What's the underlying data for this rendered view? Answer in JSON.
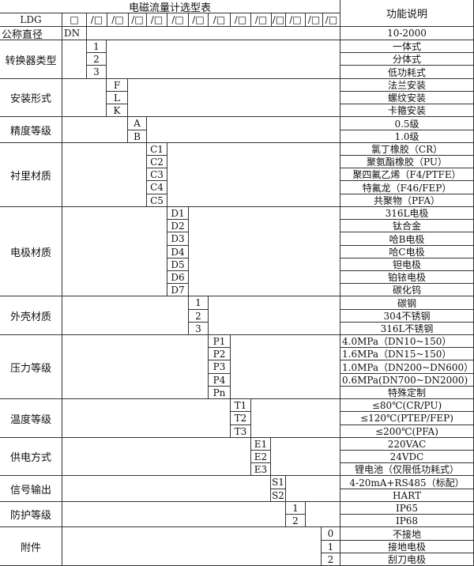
{
  "title": "电磁流量计选型表",
  "function_header": "功能说明",
  "model_row": {
    "prefix": "LDG",
    "first_box": "□",
    "boxes": [
      "/□",
      "/□",
      "/□",
      "/□",
      "/□",
      "/□",
      "/□",
      "/□",
      "/□",
      "/□",
      "/□",
      "/□",
      "/□"
    ]
  },
  "nominal_diameter": {
    "label": "公称直径",
    "code": "DN",
    "desc": "10-2000"
  },
  "groups": [
    {
      "label": "转换器类型",
      "items": [
        {
          "code": "1",
          "desc": "一体式"
        },
        {
          "code": "2",
          "desc": "分体式"
        },
        {
          "code": "3",
          "desc": "低功耗式"
        }
      ]
    },
    {
      "label": "安装形式",
      "items": [
        {
          "code": "F",
          "desc": "法兰安装"
        },
        {
          "code": "L",
          "desc": "螺纹安装"
        },
        {
          "code": "K",
          "desc": "卡箍安装"
        }
      ]
    },
    {
      "label": "精度等级",
      "items": [
        {
          "code": "A",
          "desc": "0.5级"
        },
        {
          "code": "B",
          "desc": "1.0级"
        }
      ]
    },
    {
      "label": "衬里材质",
      "items": [
        {
          "code": "C1",
          "desc": "氯丁橡胶（CR）"
        },
        {
          "code": "C2",
          "desc": "聚氨酯橡胶（PU）"
        },
        {
          "code": "C3",
          "desc": "聚四氟乙烯（F4/PTFE）"
        },
        {
          "code": "C4",
          "desc": "特氟龙（F46/FEP）"
        },
        {
          "code": "C5",
          "desc": "共聚物（PFA）"
        }
      ]
    },
    {
      "label": "电极材质",
      "items": [
        {
          "code": "D1",
          "desc": "316L电极"
        },
        {
          "code": "D2",
          "desc": "钛合金"
        },
        {
          "code": "D3",
          "desc": "哈B电极"
        },
        {
          "code": "D4",
          "desc": "哈C电极"
        },
        {
          "code": "D5",
          "desc": "钽电极"
        },
        {
          "code": "D6",
          "desc": "铂铱电极"
        },
        {
          "code": "D7",
          "desc": "碳化钨"
        }
      ]
    },
    {
      "label": "外壳材质",
      "items": [
        {
          "code": "1",
          "desc": "碳钢"
        },
        {
          "code": "2",
          "desc": "304不锈钢"
        },
        {
          "code": "3",
          "desc": "316L不锈钢"
        }
      ]
    },
    {
      "label": "压力等级",
      "items": [
        {
          "code": "P1",
          "desc": "4.0MPa（DN10~150）",
          "align": "left"
        },
        {
          "code": "P2",
          "desc": "1.6MPa（DN15~150）",
          "align": "left"
        },
        {
          "code": "P3",
          "desc": "1.0MPa（DN200~DN600）",
          "align": "left"
        },
        {
          "code": "P4",
          "desc": "0.6MPa(DN700~DN2000)",
          "align": "left"
        },
        {
          "code": "Pn",
          "desc": "特殊定制"
        }
      ]
    },
    {
      "label": "温度等级",
      "items": [
        {
          "code": "T1",
          "desc": "≤80℃(CR/PU)"
        },
        {
          "code": "T2",
          "desc": "≤120℃(PTEP/FEP)"
        },
        {
          "code": "T3",
          "desc": "≤200℃(PFA)"
        }
      ]
    },
    {
      "label": "供电方式",
      "items": [
        {
          "code": "E1",
          "desc": "220VAC"
        },
        {
          "code": "E2",
          "desc": "24VDC"
        },
        {
          "code": "E3",
          "desc": "锂电池（仅限低功耗式）"
        }
      ]
    },
    {
      "label": "信号输出",
      "items": [
        {
          "code": "S1",
          "desc": "4-20mA+RS485（标配）"
        },
        {
          "code": "S2",
          "desc": "HART"
        }
      ]
    },
    {
      "label": "防护等级",
      "items": [
        {
          "code": "1",
          "desc": "IP65"
        },
        {
          "code": "2",
          "desc": "IP68"
        }
      ]
    },
    {
      "label": "附件",
      "items": [
        {
          "code": "0",
          "desc": "不接地"
        },
        {
          "code": "1",
          "desc": "接地电极"
        },
        {
          "code": "2",
          "desc": "刮刀电极"
        }
      ]
    }
  ]
}
